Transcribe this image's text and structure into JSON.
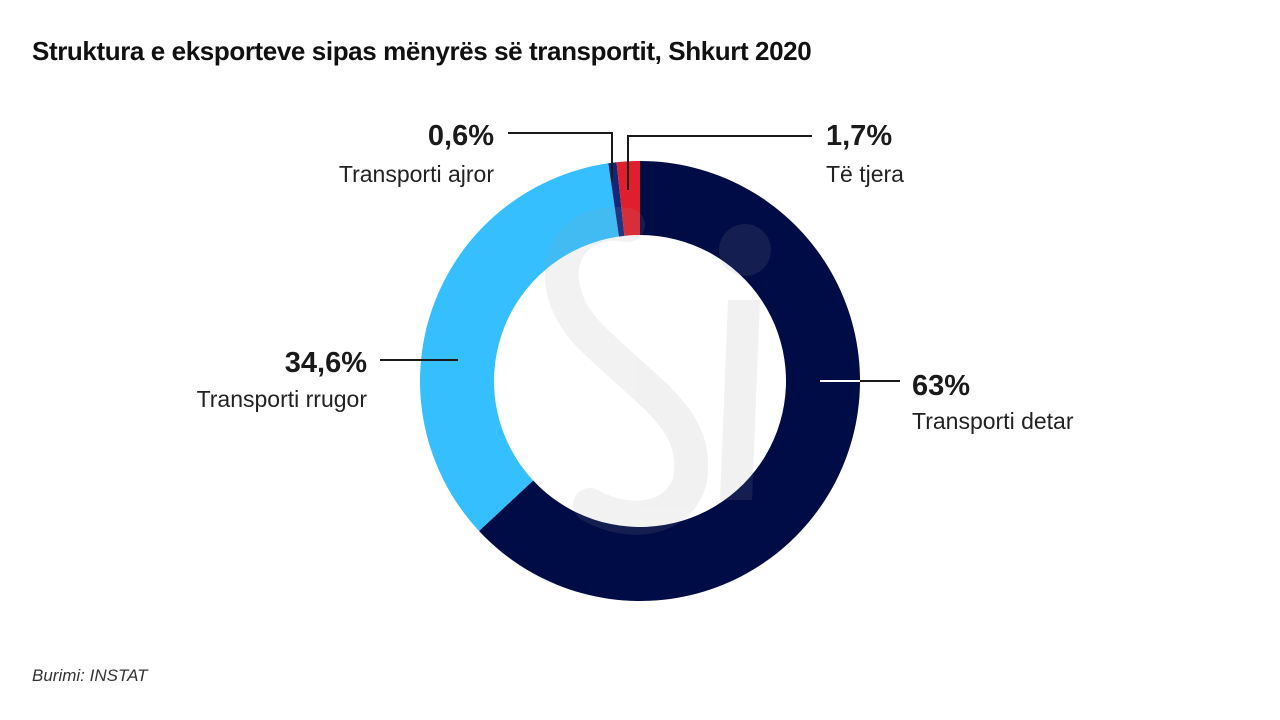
{
  "chart_data": {
    "type": "pie",
    "variant": "donut",
    "title": "Struktura e eksporteve sipas mënyrës së transportit, Shkurt 2020",
    "source": "Burimi: INSTAT",
    "slices": [
      {
        "label": "Transporti detar",
        "value": 63,
        "value_label": "63%",
        "color": "#000c45"
      },
      {
        "label": "Transporti rrugor",
        "value": 34.6,
        "value_label": "34,6%",
        "color": "#35bfff"
      },
      {
        "label": "Transporti ajror",
        "value": 0.6,
        "value_label": "0,6%",
        "color": "#12277a"
      },
      {
        "label": "Të tjera",
        "value": 1.7,
        "value_label": "1,7%",
        "color": "#e01e2c"
      }
    ]
  }
}
